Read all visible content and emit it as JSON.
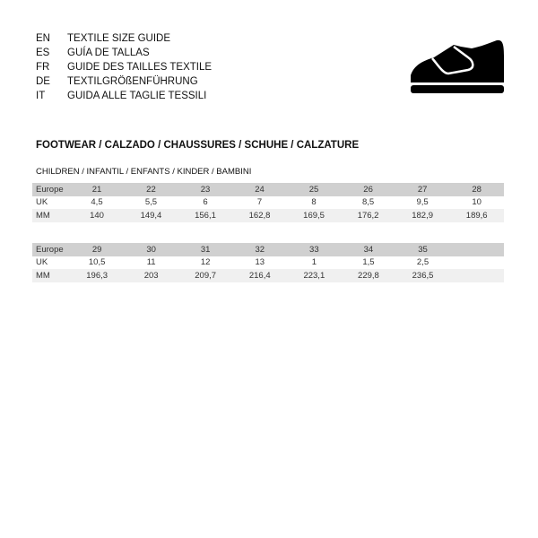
{
  "languages": [
    {
      "code": "EN",
      "label": "TEXTILE SIZE GUIDE"
    },
    {
      "code": "ES",
      "label": "GUÍA DE TALLAS"
    },
    {
      "code": "FR",
      "label": "GUIDE DES TAILLES TEXTILE"
    },
    {
      "code": "DE",
      "label": "TEXTILGRÖßENFÜHRUNG"
    },
    {
      "code": "IT",
      "label": "GUIDA ALLE TAGLIE TESSILI"
    }
  ],
  "icon": "shoe-icon",
  "section_title": "FOOTWEAR / CALZADO / CHAUSSURES / SCHUHE / CALZATURE",
  "subsection_title": "CHILDREN / INFANTIL / ENFANTS / KINDER / BAMBINI",
  "tables": [
    {
      "rows": [
        {
          "label": "Europe",
          "values": [
            "21",
            "22",
            "23",
            "24",
            "25",
            "26",
            "27",
            "28"
          ]
        },
        {
          "label": "UK",
          "values": [
            "4,5",
            "5,5",
            "6",
            "7",
            "8",
            "8,5",
            "9,5",
            "10"
          ]
        },
        {
          "label": "MM",
          "values": [
            "140",
            "149,4",
            "156,1",
            "162,8",
            "169,5",
            "176,2",
            "182,9",
            "189,6"
          ]
        }
      ]
    },
    {
      "rows": [
        {
          "label": "Europe",
          "values": [
            "29",
            "30",
            "31",
            "32",
            "33",
            "34",
            "35",
            ""
          ]
        },
        {
          "label": "UK",
          "values": [
            "10,5",
            "11",
            "12",
            "13",
            "1",
            "1,5",
            "2,5",
            ""
          ]
        },
        {
          "label": "MM",
          "values": [
            "196,3",
            "203",
            "209,7",
            "216,4",
            "223,1",
            "229,8",
            "236,5",
            ""
          ]
        }
      ]
    }
  ]
}
